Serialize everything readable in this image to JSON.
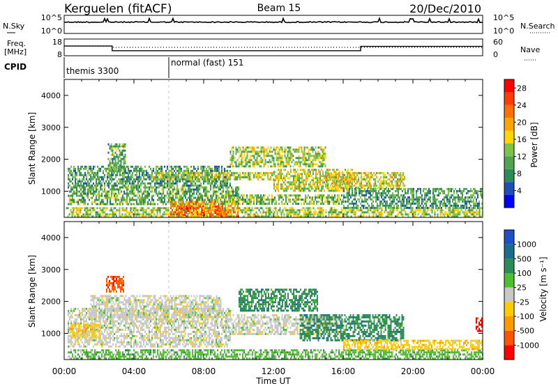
{
  "header": {
    "station": "Kerguelen (fitACF)",
    "beam": "Beam 15",
    "date": "20/Dec/2010"
  },
  "sky_panel": {
    "left_label": "N.Sky",
    "right_label": "N.Search",
    "left_ticks": [
      "10^5",
      "10^0"
    ],
    "right_ticks": [
      "10^5",
      "10^0"
    ]
  },
  "freq_panel": {
    "left_label_1": "Freq.",
    "left_label_2": "[MHz]",
    "right_label": "Nave",
    "left_ticks": [
      "18",
      "8"
    ],
    "right_ticks": [
      "60",
      "0"
    ],
    "freq_mhz": {
      "x": [
        0,
        2.75,
        2.75,
        17.0,
        17.0,
        24
      ],
      "y": [
        13.8,
        13.8,
        11.0,
        11.0,
        13.6,
        13.6
      ]
    },
    "nave": {
      "x": [
        0,
        2.75,
        2.75,
        24
      ],
      "y": [
        35,
        35,
        30,
        30
      ]
    }
  },
  "cpid": {
    "label": "CPID",
    "segments": [
      {
        "name": "themis 3300",
        "start_hour": 0
      },
      {
        "name": "normal (fast) 151",
        "start_hour": 6.0
      }
    ]
  },
  "chart_data": [
    {
      "type": "heatmap",
      "name": "power",
      "ylabel": "Slant Range [km]",
      "xlabel": "Time UT",
      "x_range_hours": [
        0,
        24
      ],
      "y_range_km": [
        180,
        4500
      ],
      "xticks": [
        "00:00",
        "04:00",
        "08:00",
        "12:00",
        "16:00",
        "20:00",
        "00:00"
      ],
      "yticks": [
        "1000",
        "2000",
        "3000",
        "4000"
      ],
      "colorbar": {
        "label": "Power [dB]",
        "ticks": [
          "4",
          "8",
          "12",
          "16",
          "20",
          "24",
          "28"
        ],
        "range": [
          0,
          30
        ],
        "colors": [
          "#0000ff",
          "#1f4fb4",
          "#2e8b57",
          "#4fa352",
          "#7cc347",
          "#ffd700",
          "#ffa500",
          "#ff7000",
          "#ff3c00",
          "#ff0000"
        ]
      },
      "regions": [
        {
          "t0": 0.1,
          "t1": 24,
          "r0": 180,
          "r1": 500,
          "level": 0.45
        },
        {
          "t0": 0.2,
          "t1": 10,
          "r0": 600,
          "r1": 1150,
          "level": 0.35
        },
        {
          "t0": 0.2,
          "t1": 9.5,
          "r0": 1200,
          "r1": 1800,
          "level": 0.3
        },
        {
          "t0": 5.0,
          "t1": 12.0,
          "r0": 1400,
          "r1": 1600,
          "level": 0.5
        },
        {
          "t0": 6.5,
          "t1": 9.0,
          "r0": 250,
          "r1": 550,
          "level": 0.95
        },
        {
          "t0": 6.0,
          "t1": 10.0,
          "r0": 200,
          "r1": 700,
          "level": 0.7
        },
        {
          "t0": 2.5,
          "t1": 3.5,
          "r0": 1600,
          "r1": 2500,
          "level": 0.35
        },
        {
          "t0": 9.5,
          "t1": 15.0,
          "r0": 1800,
          "r1": 2400,
          "level": 0.45
        },
        {
          "t0": 12.0,
          "t1": 16.5,
          "r0": 1000,
          "r1": 1700,
          "level": 0.5
        },
        {
          "t0": 15.0,
          "t1": 19.5,
          "r0": 1100,
          "r1": 1600,
          "level": 0.55
        },
        {
          "t0": 16.0,
          "t1": 24,
          "r0": 500,
          "r1": 1100,
          "level": 0.3
        },
        {
          "t0": 9.0,
          "t1": 16.0,
          "r0": 600,
          "r1": 900,
          "level": 0.4
        }
      ]
    },
    {
      "type": "heatmap",
      "name": "velocity",
      "ylabel": "Slant Range [km]",
      "xlabel": "Time UT",
      "x_range_hours": [
        0,
        24
      ],
      "y_range_km": [
        180,
        4500
      ],
      "xticks": [
        "00:00",
        "04:00",
        "08:00",
        "12:00",
        "16:00",
        "20:00",
        "00:00"
      ],
      "yticks": [
        "1000",
        "2000",
        "3000",
        "4000"
      ],
      "colorbar": {
        "label": "Velocity [m s⁻¹]",
        "ticks": [
          "1000",
          "500",
          "100",
          "25",
          "-25",
          "-100",
          "-500",
          "-1000"
        ],
        "colors": [
          "#1e50c8",
          "#1a6e8c",
          "#2e8b57",
          "#4fbf30",
          "#c8c8c8",
          "#ffcc00",
          "#ff9900",
          "#ff5500",
          "#ff0000"
        ]
      },
      "regions": [
        {
          "t0": 0.2,
          "t1": 9.5,
          "r0": 600,
          "r1": 1800,
          "cls": 4
        },
        {
          "t0": 1.5,
          "t1": 9.0,
          "r0": 1500,
          "r1": 2200,
          "cls": 4
        },
        {
          "t0": 9.5,
          "t1": 16.0,
          "r0": 1000,
          "r1": 1600,
          "cls": 4
        },
        {
          "t0": 10.0,
          "t1": 14.5,
          "r0": 1700,
          "r1": 2400,
          "cls": 2
        },
        {
          "t0": 13.5,
          "t1": 19.5,
          "r0": 800,
          "r1": 1600,
          "cls": 2
        },
        {
          "t0": 0.2,
          "t1": 24,
          "r0": 200,
          "r1": 500,
          "cls": 3
        },
        {
          "t0": 16.0,
          "t1": 24,
          "r0": 500,
          "r1": 800,
          "cls": 5
        },
        {
          "t0": 2.4,
          "t1": 3.4,
          "r0": 2300,
          "r1": 2800,
          "cls": 7
        },
        {
          "t0": 0.3,
          "t1": 2.0,
          "r0": 900,
          "r1": 1300,
          "cls": 5
        },
        {
          "t0": 23.6,
          "t1": 24,
          "r0": 1100,
          "r1": 1500,
          "cls": 8
        }
      ]
    }
  ],
  "xlabel": "Time UT"
}
